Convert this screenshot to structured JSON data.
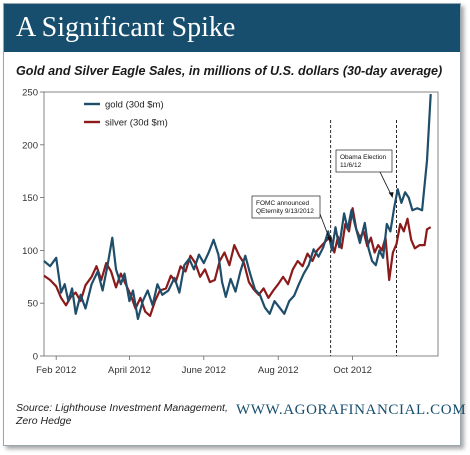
{
  "header": {
    "title": "A Significant Spike",
    "subtitle": "Gold and Silver Eagle Sales, in millions of U.S. dollars (30-day average)"
  },
  "footer": {
    "source_line1": "Source: Lighthouse Investment Management,",
    "source_line2": "Zero Hedge",
    "site": "WWW.AGORAFINANCIAL.COM"
  },
  "colors": {
    "banner": "#174e6e",
    "gold": "#1f4e6b",
    "silver": "#8b1a1a"
  },
  "chart_data": {
    "type": "line",
    "title": "Gold and Silver Eagle Sales, in millions of U.S. dollars (30-day average)",
    "xlabel": "",
    "ylabel": "",
    "xlim": [
      "2012-01-22",
      "2012-12-10"
    ],
    "ylim": [
      0,
      250
    ],
    "yticks": [
      0,
      50,
      100,
      150,
      200,
      250
    ],
    "xticks": [
      {
        "date": "2012-02-01",
        "label": "Feb 2012"
      },
      {
        "date": "2012-04-01",
        "label": "April 2012"
      },
      {
        "date": "2012-06-01",
        "label": "June 2012"
      },
      {
        "date": "2012-08-01",
        "label": "Aug 2012"
      },
      {
        "date": "2012-10-01",
        "label": "Oct 2012"
      }
    ],
    "grid": false,
    "legend": "top-left",
    "series": [
      {
        "name": "gold (30d $m)",
        "color": "#1f4e6b",
        "points": [
          [
            "2012-01-22",
            90
          ],
          [
            "2012-01-27",
            85
          ],
          [
            "2012-02-01",
            93
          ],
          [
            "2012-02-05",
            60
          ],
          [
            "2012-02-08",
            68
          ],
          [
            "2012-02-11",
            52
          ],
          [
            "2012-02-14",
            64
          ],
          [
            "2012-02-17",
            40
          ],
          [
            "2012-02-21",
            58
          ],
          [
            "2012-02-25",
            45
          ],
          [
            "2012-03-01",
            68
          ],
          [
            "2012-03-06",
            80
          ],
          [
            "2012-03-10",
            62
          ],
          [
            "2012-03-14",
            85
          ],
          [
            "2012-03-18",
            112
          ],
          [
            "2012-03-21",
            82
          ],
          [
            "2012-03-25",
            68
          ],
          [
            "2012-03-28",
            78
          ],
          [
            "2012-04-01",
            52
          ],
          [
            "2012-04-04",
            62
          ],
          [
            "2012-04-08",
            35
          ],
          [
            "2012-04-12",
            52
          ],
          [
            "2012-04-16",
            62
          ],
          [
            "2012-04-20",
            48
          ],
          [
            "2012-04-24",
            68
          ],
          [
            "2012-04-28",
            58
          ],
          [
            "2012-05-03",
            62
          ],
          [
            "2012-05-08",
            74
          ],
          [
            "2012-05-12",
            60
          ],
          [
            "2012-05-16",
            86
          ],
          [
            "2012-05-20",
            92
          ],
          [
            "2012-05-24",
            82
          ],
          [
            "2012-05-28",
            96
          ],
          [
            "2012-06-01",
            88
          ],
          [
            "2012-06-05",
            98
          ],
          [
            "2012-06-09",
            110
          ],
          [
            "2012-06-13",
            96
          ],
          [
            "2012-06-16",
            70
          ],
          [
            "2012-06-19",
            56
          ],
          [
            "2012-06-23",
            73
          ],
          [
            "2012-06-27",
            61
          ],
          [
            "2012-07-01",
            80
          ],
          [
            "2012-07-05",
            95
          ],
          [
            "2012-07-09",
            78
          ],
          [
            "2012-07-13",
            63
          ],
          [
            "2012-07-17",
            58
          ],
          [
            "2012-07-21",
            46
          ],
          [
            "2012-07-25",
            40
          ],
          [
            "2012-07-29",
            52
          ],
          [
            "2012-08-02",
            46
          ],
          [
            "2012-08-06",
            40
          ],
          [
            "2012-08-10",
            52
          ],
          [
            "2012-08-14",
            57
          ],
          [
            "2012-08-18",
            68
          ],
          [
            "2012-08-22",
            78
          ],
          [
            "2012-08-26",
            86
          ],
          [
            "2012-08-30",
            101
          ],
          [
            "2012-09-03",
            94
          ],
          [
            "2012-09-07",
            103
          ],
          [
            "2012-09-11",
            118
          ],
          [
            "2012-09-14",
            100
          ],
          [
            "2012-09-17",
            122
          ],
          [
            "2012-09-20",
            103
          ],
          [
            "2012-09-24",
            135
          ],
          [
            "2012-09-27",
            120
          ],
          [
            "2012-09-30",
            138
          ],
          [
            "2012-10-03",
            124
          ],
          [
            "2012-10-07",
            107
          ],
          [
            "2012-10-11",
            126
          ],
          [
            "2012-10-14",
            102
          ],
          [
            "2012-10-17",
            90
          ],
          [
            "2012-10-20",
            86
          ],
          [
            "2012-10-23",
            100
          ],
          [
            "2012-10-26",
            93
          ],
          [
            "2012-10-29",
            125
          ],
          [
            "2012-11-01",
            118
          ],
          [
            "2012-11-04",
            140
          ],
          [
            "2012-11-07",
            158
          ],
          [
            "2012-11-10",
            145
          ],
          [
            "2012-11-13",
            155
          ],
          [
            "2012-11-16",
            150
          ],
          [
            "2012-11-19",
            138
          ],
          [
            "2012-11-23",
            140
          ],
          [
            "2012-11-27",
            138
          ],
          [
            "2012-12-01",
            185
          ],
          [
            "2012-12-04",
            248
          ]
        ]
      },
      {
        "name": "silver (30d $m)",
        "color": "#8b1a1a",
        "points": [
          [
            "2012-01-22",
            76
          ],
          [
            "2012-01-27",
            72
          ],
          [
            "2012-02-01",
            66
          ],
          [
            "2012-02-05",
            55
          ],
          [
            "2012-02-09",
            48
          ],
          [
            "2012-02-13",
            56
          ],
          [
            "2012-02-17",
            60
          ],
          [
            "2012-02-21",
            52
          ],
          [
            "2012-02-25",
            67
          ],
          [
            "2012-03-01",
            75
          ],
          [
            "2012-03-05",
            85
          ],
          [
            "2012-03-09",
            72
          ],
          [
            "2012-03-13",
            88
          ],
          [
            "2012-03-17",
            80
          ],
          [
            "2012-03-21",
            65
          ],
          [
            "2012-03-25",
            78
          ],
          [
            "2012-03-29",
            68
          ],
          [
            "2012-04-02",
            58
          ],
          [
            "2012-04-06",
            45
          ],
          [
            "2012-04-10",
            55
          ],
          [
            "2012-04-14",
            42
          ],
          [
            "2012-04-18",
            38
          ],
          [
            "2012-04-22",
            52
          ],
          [
            "2012-04-26",
            62
          ],
          [
            "2012-05-01",
            64
          ],
          [
            "2012-05-05",
            76
          ],
          [
            "2012-05-09",
            70
          ],
          [
            "2012-05-13",
            85
          ],
          [
            "2012-05-17",
            80
          ],
          [
            "2012-05-21",
            95
          ],
          [
            "2012-05-25",
            88
          ],
          [
            "2012-05-29",
            75
          ],
          [
            "2012-06-02",
            82
          ],
          [
            "2012-06-06",
            70
          ],
          [
            "2012-06-10",
            72
          ],
          [
            "2012-06-14",
            90
          ],
          [
            "2012-06-18",
            98
          ],
          [
            "2012-06-22",
            86
          ],
          [
            "2012-06-26",
            105
          ],
          [
            "2012-06-30",
            95
          ],
          [
            "2012-07-04",
            88
          ],
          [
            "2012-07-08",
            70
          ],
          [
            "2012-07-12",
            63
          ],
          [
            "2012-07-16",
            58
          ],
          [
            "2012-07-20",
            64
          ],
          [
            "2012-07-24",
            55
          ],
          [
            "2012-07-28",
            62
          ],
          [
            "2012-08-01",
            68
          ],
          [
            "2012-08-05",
            75
          ],
          [
            "2012-08-09",
            68
          ],
          [
            "2012-08-13",
            82
          ],
          [
            "2012-08-17",
            90
          ],
          [
            "2012-08-21",
            85
          ],
          [
            "2012-08-25",
            97
          ],
          [
            "2012-08-29",
            90
          ],
          [
            "2012-09-02",
            100
          ],
          [
            "2012-09-06",
            105
          ],
          [
            "2012-09-10",
            110
          ],
          [
            "2012-09-13",
            112
          ],
          [
            "2012-09-16",
            98
          ],
          [
            "2012-09-19",
            113
          ],
          [
            "2012-09-22",
            102
          ],
          [
            "2012-09-25",
            125
          ],
          [
            "2012-09-28",
            118
          ],
          [
            "2012-10-01",
            140
          ],
          [
            "2012-10-04",
            120
          ],
          [
            "2012-10-07",
            112
          ],
          [
            "2012-10-10",
            118
          ],
          [
            "2012-10-13",
            104
          ],
          [
            "2012-10-16",
            112
          ],
          [
            "2012-10-19",
            98
          ],
          [
            "2012-10-22",
            105
          ],
          [
            "2012-10-25",
            100
          ],
          [
            "2012-10-28",
            112
          ],
          [
            "2012-10-31",
            72
          ],
          [
            "2012-11-03",
            98
          ],
          [
            "2012-11-06",
            106
          ],
          [
            "2012-11-09",
            125
          ],
          [
            "2012-11-12",
            118
          ],
          [
            "2012-11-15",
            130
          ],
          [
            "2012-11-18",
            110
          ],
          [
            "2012-11-21",
            102
          ],
          [
            "2012-11-25",
            105
          ],
          [
            "2012-11-29",
            105
          ],
          [
            "2012-12-01",
            120
          ],
          [
            "2012-12-04",
            122
          ]
        ]
      }
    ],
    "annotations": [
      {
        "date": "2012-09-13",
        "lines": [
          "FOMC announced",
          "QEternity 9/13/2012"
        ],
        "dashed_line": true
      },
      {
        "date": "2012-11-06",
        "lines": [
          "Obama Election",
          "11/6/12"
        ],
        "dashed_line": true
      }
    ]
  }
}
